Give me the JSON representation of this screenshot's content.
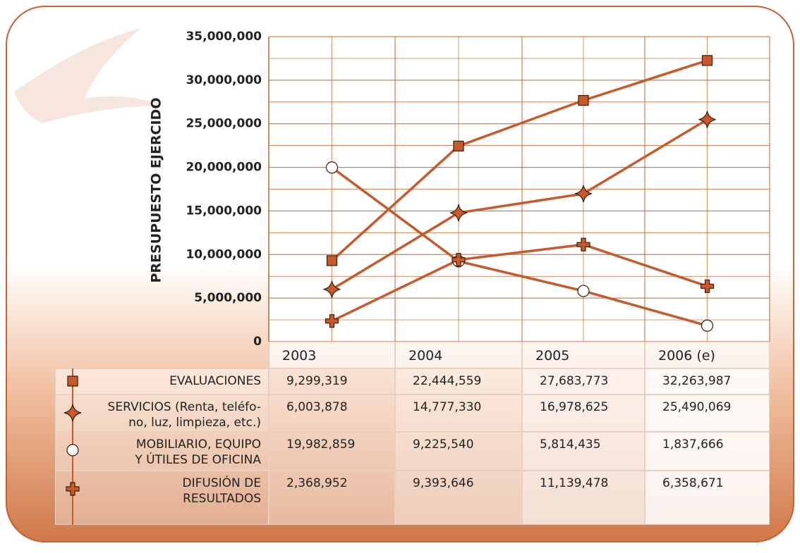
{
  "chart_data": {
    "type": "line",
    "y_label": "PRESUPUESTO EJERCIDO",
    "categories": [
      "2003",
      "2004",
      "2005",
      "2006 (e)"
    ],
    "ylim": [
      0,
      35000000
    ],
    "yticks": [
      {
        "value": 0,
        "label": "0"
      },
      {
        "value": 5000000,
        "label": "5,000,000"
      },
      {
        "value": 10000000,
        "label": "10,000,000"
      },
      {
        "value": 15000000,
        "label": "15,000,000"
      },
      {
        "value": 20000000,
        "label": "20,000,000"
      },
      {
        "value": 25000000,
        "label": "25,000,000"
      },
      {
        "value": 30000000,
        "label": "30,000,000"
      },
      {
        "value": 35000000,
        "label": "35,000,000"
      }
    ],
    "grid": true,
    "series": [
      {
        "name": "EVALUACIONES",
        "color": "#c65a2b",
        "marker": "square",
        "values": [
          9299319,
          22444559,
          27683773,
          32263987
        ],
        "value_labels": [
          "9,299,319",
          "22,444,559",
          "27,683,773",
          "32,263,987"
        ]
      },
      {
        "name": "SERVICIOS (Renta, teléfo-\nno, luz, limpieza, etc.)",
        "color": "#c65a2b",
        "marker": "star",
        "values": [
          6003878,
          14777330,
          16978625,
          25490069
        ],
        "value_labels": [
          "6,003,878",
          "14,777,330",
          "16,978,625",
          "25,490,069"
        ]
      },
      {
        "name": "MOBILIARIO, EQUIPO\nY ÚTILES DE OFICINA",
        "color": "#c65a2b",
        "marker": "circle",
        "values": [
          19982859,
          9225540,
          5814435,
          1837666
        ],
        "value_labels": [
          "19,982,859",
          "9,225,540",
          "5,814,435",
          "1,837,666"
        ]
      },
      {
        "name": "DIFUSIÓN DE\nRESULTADOS",
        "color": "#c65a2b",
        "marker": "plus",
        "values": [
          2368952,
          9393646,
          11139478,
          6358671
        ],
        "value_labels": [
          "2,368,952",
          "9,393,646",
          "11,139,478",
          "6,358,671"
        ]
      }
    ]
  }
}
